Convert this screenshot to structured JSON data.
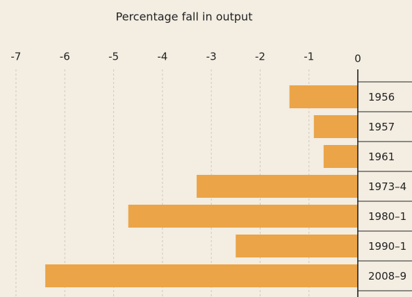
{
  "chart_data": {
    "type": "bar",
    "orientation": "horizontal",
    "title": "Percentage fall in output",
    "categories": [
      "1956",
      "1957",
      "1961",
      "1973–4",
      "1980–1",
      "1990–1",
      "2008–9"
    ],
    "values": [
      -1.4,
      -0.9,
      -0.7,
      -3.3,
      -4.7,
      -2.5,
      -6.4
    ],
    "color": "#eba447",
    "xlim": [
      -7,
      0
    ],
    "xticks": [
      -7,
      -6,
      -5,
      -4,
      -3,
      -2,
      -1,
      0
    ],
    "grid": true
  }
}
